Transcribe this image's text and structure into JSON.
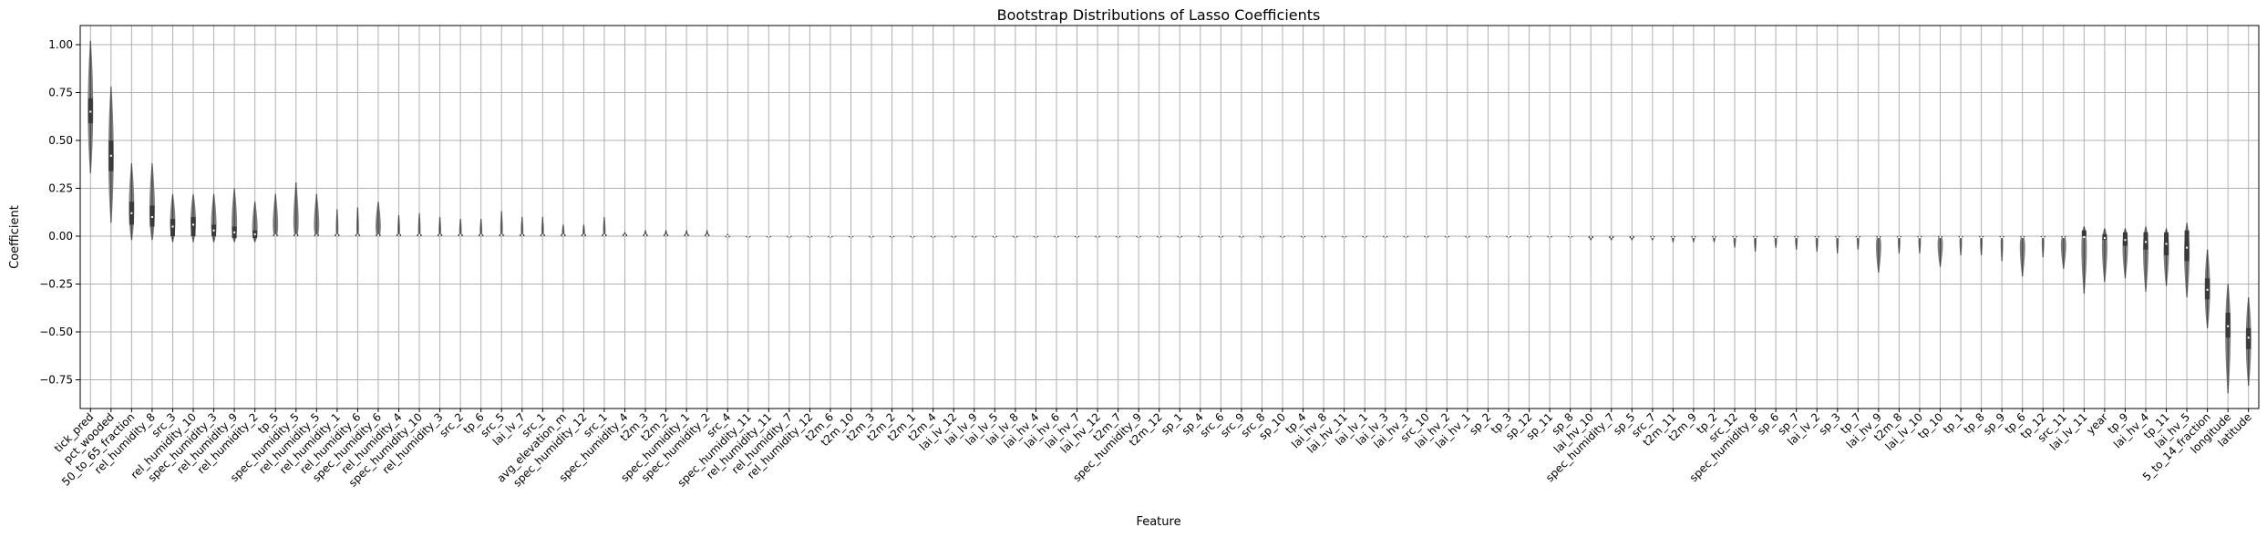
{
  "chart_data": {
    "type": "violin",
    "title": "Bootstrap Distributions of Lasso Coefficients",
    "xlabel": "Feature",
    "ylabel": "Coefficient",
    "ylim": [
      -0.9,
      1.1
    ],
    "yticks": [
      "−0.75",
      "−0.50",
      "−0.25",
      "0.00",
      "0.25",
      "0.50",
      "0.75",
      "1.00"
    ],
    "grid": true,
    "categories": [
      "tick_pred",
      "pct_wooded",
      "50_to_65_fraction",
      "rel_humidity_8",
      "src_3",
      "rel_humidity_10",
      "spec_humidity_3",
      "rel_humidity_9",
      "rel_humidity_2",
      "tp_5",
      "spec_humidity_5",
      "rel_humidity_5",
      "rel_humidity_1",
      "rel_humidity_6",
      "spec_humidity_6",
      "rel_humidity_4",
      "spec_humidity_10",
      "rel_humidity_3",
      "src_2",
      "tp_6",
      "src_5",
      "lai_lv_7",
      "src_1",
      "avg_elevation_m",
      "spec_humidity_12",
      "src_1",
      "spec_humidity_4",
      "t2m_3",
      "t2m_2",
      "spec_humidity_1",
      "spec_humidity_2",
      "src_4",
      "spec_humidity_11",
      "rel_humidity_11",
      "rel_humidity_7",
      "rel_humidity_12",
      "t2m_6",
      "t2m_10",
      "t2m_3",
      "t2m_2",
      "t2m_1",
      "t2m_4",
      "lai_lv_12",
      "lai_lv_9",
      "lai_lv_5",
      "lai_lv_8",
      "lai_hv_4",
      "lai_hv_6",
      "lai_hv_7",
      "lai_hv_12",
      "t2m_7",
      "spec_humidity_9",
      "t2m_12",
      "sp_1",
      "sp_4",
      "src_6",
      "src_9",
      "src_8",
      "sp_10",
      "tp_4",
      "lai_hv_8",
      "lai_hv_11",
      "lai_lv_1",
      "lai_lv_3",
      "lai_hv_3",
      "src_10",
      "lai_hv_2",
      "lai_hv_1",
      "sp_2",
      "tp_3",
      "sp_12",
      "sp_11",
      "sp_8",
      "lai_hv_10",
      "spec_humidity_7",
      "sp_5",
      "src_7",
      "t2m_11",
      "t2m_9",
      "tp_2",
      "src_12",
      "spec_humidity_8",
      "sp_6",
      "sp_7",
      "lai_lv_2",
      "sp_3",
      "tp_7",
      "lai_hv_9",
      "t2m_8",
      "lai_lv_10",
      "tp_10",
      "tp_1",
      "tp_8",
      "sp_9",
      "tp_6",
      "tp_12",
      "src_11",
      "lai_lv_11",
      "year",
      "tp_9",
      "lai_hv_4",
      "tp_11",
      "lai_hv_5",
      "5_to_14_fraction",
      "longitude",
      "latitude"
    ],
    "values": [
      0.65,
      0.42,
      0.12,
      0.1,
      0.05,
      0.06,
      0.03,
      0.02,
      0.01,
      0.005,
      0.005,
      0.005,
      0.005,
      0.005,
      0.005,
      0.005,
      0.005,
      0.005,
      0.005,
      0.005,
      0.005,
      0.005,
      0.005,
      0.005,
      0.005,
      0.005,
      0.005,
      0.005,
      0.005,
      0.005,
      0.005,
      0.0,
      0.0,
      0.0,
      0.0,
      0.0,
      0.0,
      0.0,
      0.0,
      0.0,
      0.0,
      0.0,
      0.0,
      0.0,
      0.0,
      0.0,
      0.0,
      0.0,
      0.0,
      0.0,
      0.0,
      0.0,
      0.0,
      0.0,
      0.0,
      0.0,
      0.0,
      0.0,
      0.0,
      0.0,
      0.0,
      0.0,
      0.0,
      0.0,
      0.0,
      0.0,
      0.0,
      0.0,
      0.0,
      0.0,
      0.0,
      0.0,
      0.0,
      -0.005,
      -0.005,
      -0.005,
      -0.005,
      -0.005,
      -0.005,
      -0.005,
      -0.005,
      -0.005,
      -0.005,
      -0.005,
      -0.005,
      -0.005,
      -0.005,
      -0.005,
      -0.005,
      -0.005,
      -0.005,
      -0.005,
      -0.005,
      -0.005,
      -0.005,
      -0.005,
      -0.005,
      -0.005,
      -0.01,
      -0.02,
      -0.03,
      -0.04,
      -0.06,
      -0.28,
      -0.47,
      -0.53
    ],
    "q1": [
      0.59,
      0.34,
      0.06,
      0.05,
      0.0,
      0.0,
      0.0,
      -0.01,
      -0.01,
      0.0,
      0.0,
      0.0,
      0.0,
      0.0,
      0.0,
      0.0,
      0.0,
      0.0,
      0.0,
      0.0,
      0.0,
      0.0,
      0.0,
      0.0,
      0.0,
      0.0,
      0.0,
      0.0,
      0.0,
      0.0,
      0.0,
      0.0,
      0.0,
      0.0,
      0.0,
      0.0,
      0.0,
      0.0,
      0.0,
      0.0,
      0.0,
      0.0,
      0.0,
      0.0,
      0.0,
      0.0,
      0.0,
      0.0,
      0.0,
      0.0,
      0.0,
      0.0,
      0.0,
      0.0,
      0.0,
      0.0,
      0.0,
      0.0,
      0.0,
      0.0,
      0.0,
      0.0,
      0.0,
      0.0,
      0.0,
      0.0,
      0.0,
      0.0,
      0.0,
      0.0,
      0.0,
      0.0,
      0.0,
      -0.01,
      -0.01,
      -0.01,
      0.0,
      0.0,
      0.0,
      0.0,
      0.0,
      0.0,
      0.0,
      0.0,
      0.0,
      0.0,
      0.0,
      0.0,
      0.0,
      0.0,
      0.0,
      0.0,
      0.0,
      0.0,
      0.0,
      0.0,
      0.0,
      0.0,
      -0.02,
      -0.05,
      -0.07,
      -0.1,
      -0.13,
      -0.33,
      -0.53,
      -0.59
    ],
    "q3": [
      0.72,
      0.5,
      0.18,
      0.16,
      0.09,
      0.1,
      0.06,
      0.05,
      0.03,
      0.01,
      0.01,
      0.01,
      0.01,
      0.01,
      0.01,
      0.01,
      0.01,
      0.01,
      0.01,
      0.01,
      0.01,
      0.01,
      0.01,
      0.01,
      0.01,
      0.01,
      0.01,
      0.01,
      0.01,
      0.01,
      0.01,
      0.0,
      0.0,
      0.0,
      0.0,
      0.0,
      0.0,
      0.0,
      0.0,
      0.0,
      0.0,
      0.0,
      0.0,
      0.0,
      0.0,
      0.0,
      0.0,
      0.0,
      0.0,
      0.0,
      0.0,
      0.0,
      0.0,
      0.0,
      0.0,
      0.0,
      0.0,
      0.0,
      0.0,
      0.0,
      0.0,
      0.0,
      0.0,
      0.0,
      0.0,
      0.0,
      0.0,
      0.0,
      0.0,
      0.0,
      0.0,
      0.0,
      0.0,
      0.0,
      0.0,
      0.0,
      0.0,
      0.0,
      0.0,
      0.0,
      0.0,
      0.0,
      0.0,
      0.0,
      0.0,
      0.0,
      0.0,
      0.0,
      0.0,
      0.0,
      0.0,
      0.0,
      0.0,
      0.0,
      0.0,
      0.0,
      0.0,
      0.03,
      0.01,
      0.02,
      0.02,
      0.02,
      0.03,
      -0.22,
      -0.4,
      -0.48
    ],
    "min": [
      0.33,
      0.07,
      -0.02,
      -0.02,
      -0.03,
      -0.03,
      -0.03,
      -0.03,
      -0.03,
      0.0,
      0.0,
      0.0,
      0.0,
      0.0,
      0.0,
      0.0,
      0.0,
      0.0,
      0.0,
      0.0,
      0.0,
      0.0,
      0.0,
      0.0,
      0.0,
      0.0,
      0.0,
      0.0,
      0.0,
      0.0,
      0.0,
      0.0,
      0.0,
      0.0,
      0.0,
      0.0,
      0.0,
      0.0,
      0.0,
      0.0,
      0.0,
      0.0,
      0.0,
      0.0,
      0.0,
      0.0,
      0.0,
      0.0,
      0.0,
      0.0,
      0.0,
      0.0,
      0.0,
      0.0,
      0.0,
      0.0,
      0.0,
      0.0,
      0.0,
      0.0,
      0.0,
      0.0,
      0.0,
      0.0,
      0.0,
      0.0,
      0.0,
      0.0,
      0.0,
      0.0,
      0.0,
      0.0,
      0.0,
      -0.02,
      -0.02,
      -0.02,
      -0.02,
      -0.03,
      -0.03,
      -0.03,
      -0.06,
      -0.08,
      -0.06,
      -0.07,
      -0.08,
      -0.09,
      -0.07,
      -0.19,
      -0.09,
      -0.09,
      -0.16,
      -0.1,
      -0.1,
      -0.13,
      -0.21,
      -0.11,
      -0.17,
      -0.3,
      -0.24,
      -0.22,
      -0.29,
      -0.26,
      -0.32,
      -0.48,
      -0.82,
      -0.78
    ],
    "max": [
      1.02,
      0.78,
      0.38,
      0.38,
      0.22,
      0.22,
      0.22,
      0.25,
      0.18,
      0.22,
      0.28,
      0.22,
      0.14,
      0.15,
      0.18,
      0.11,
      0.12,
      0.1,
      0.09,
      0.09,
      0.13,
      0.1,
      0.1,
      0.06,
      0.06,
      0.1,
      0.02,
      0.03,
      0.03,
      0.03,
      0.03,
      0.01,
      0.0,
      0.0,
      0.0,
      0.0,
      0.0,
      0.0,
      0.0,
      0.0,
      0.0,
      0.0,
      0.0,
      0.0,
      0.0,
      0.0,
      0.0,
      0.0,
      0.0,
      0.0,
      0.0,
      0.0,
      0.0,
      0.0,
      0.0,
      0.0,
      0.0,
      0.0,
      0.0,
      0.0,
      0.0,
      0.0,
      0.0,
      0.0,
      0.0,
      0.0,
      0.0,
      0.0,
      0.0,
      0.0,
      0.0,
      0.0,
      0.0,
      0.0,
      0.0,
      0.0,
      0.0,
      0.0,
      0.0,
      0.0,
      0.0,
      0.0,
      0.0,
      0.0,
      0.0,
      0.0,
      0.0,
      0.0,
      0.0,
      0.0,
      0.0,
      0.0,
      0.0,
      0.0,
      0.0,
      0.0,
      0.0,
      0.05,
      0.04,
      0.04,
      0.05,
      0.04,
      0.07,
      -0.07,
      -0.25,
      -0.32
    ],
    "colors": {
      "violin": "#808080",
      "box": "#3a3a3a",
      "grid": "#b0b0b0"
    }
  }
}
